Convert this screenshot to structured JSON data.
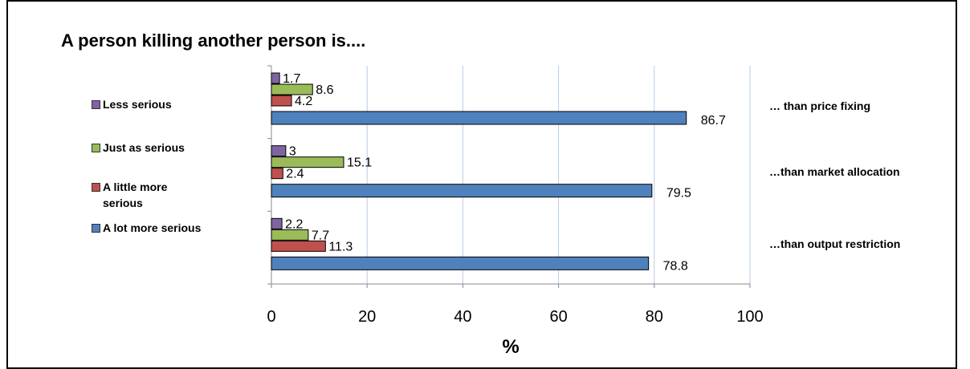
{
  "title": "A person killing another person is....",
  "chart_data": {
    "type": "bar",
    "orientation": "horizontal",
    "title": "A person killing another person is....",
    "xlabel": "%",
    "ylabel": "",
    "xlim": [
      0,
      100
    ],
    "xticks": [
      "0",
      "20",
      "40",
      "60",
      "80",
      "100"
    ],
    "grid": "vertical",
    "legend_position": "left",
    "categories": [
      "… than price fixing",
      "…than market allocation",
      "…than output restriction"
    ],
    "series": [
      {
        "name": "Less serious",
        "color": "#8064A2",
        "values": [
          1.7,
          3,
          2.2
        ],
        "labels": [
          "1.7",
          "3",
          "2.2"
        ]
      },
      {
        "name": "Just as serious",
        "color": "#9BBB59",
        "values": [
          8.6,
          15.1,
          7.7
        ],
        "labels": [
          "8.6",
          "15.1",
          "7.7"
        ]
      },
      {
        "name": "A little more serious",
        "color": "#C0504D",
        "values": [
          4.2,
          2.4,
          11.3
        ],
        "labels": [
          "4.2",
          "2.4",
          "11.3"
        ]
      },
      {
        "name": "A lot more serious",
        "color": "#4F81BD",
        "values": [
          86.7,
          79.5,
          78.8
        ],
        "labels": [
          "86.7",
          "79.5",
          "78.8"
        ]
      }
    ]
  }
}
